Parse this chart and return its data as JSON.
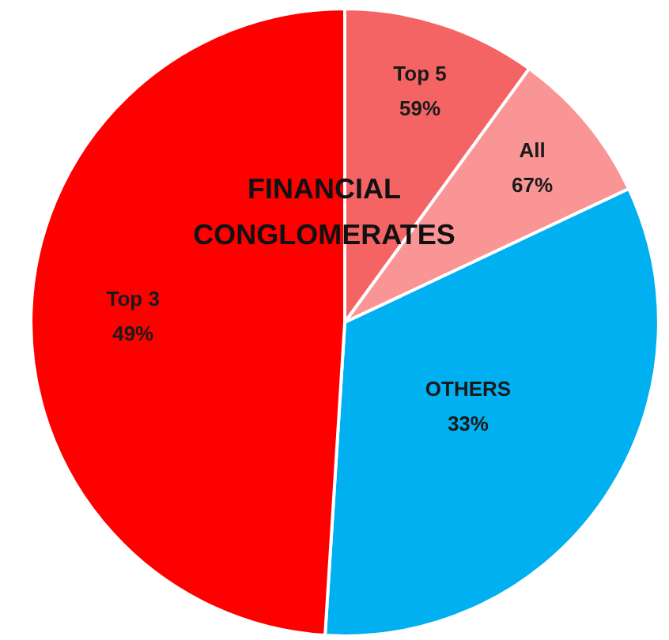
{
  "chart_data": {
    "type": "pie",
    "categories": [
      "Top 5",
      "All",
      "OTHERS",
      "Top 3"
    ],
    "values": [
      10,
      8,
      33,
      49
    ],
    "colors": [
      "#f46464",
      "#f99595",
      "#00b0f0",
      "#ff0000"
    ],
    "annotations": [
      "FINANCIAL\nCONGLOMERATES",
      {
        "text": "59%",
        "x": "Top 5"
      },
      {
        "text": "67%",
        "x": "All"
      },
      {
        "text": "33%",
        "x": "OTHERS"
      },
      {
        "text": "49%",
        "x": "Top 3"
      }
    ],
    "legend": false
  }
}
